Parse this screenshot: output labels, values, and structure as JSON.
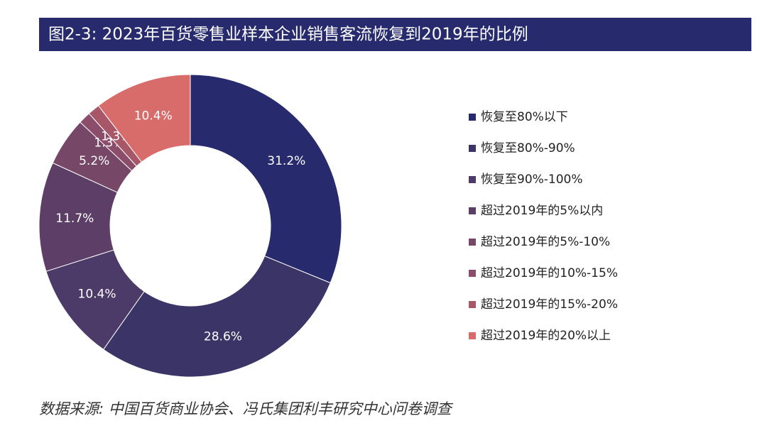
{
  "chart_data": {
    "type": "donut",
    "title": "图2-3: 2023年百货零售业样本企业销售客流恢复到2019年的比例",
    "source": "数据来源: 中国百货商业协会、冯氏集团利丰研究中心问卷调查",
    "categories": [
      "恢复至80%以下",
      "恢复至80%-90%",
      "恢复至90%-100%",
      "超过2019年的5%以内",
      "超过2019年的5%-10%",
      "超过2019年的10%-15%",
      "超过2019年的15%-20%",
      "超过2019年的20%以上"
    ],
    "values": [
      31.2,
      28.6,
      10.4,
      11.7,
      5.2,
      1.3,
      1.3,
      10.4
    ],
    "value_labels": [
      "31.2%",
      "28.6%",
      "10.4%",
      "11.7%",
      "5.2%",
      "1.3%",
      "1.3%",
      "10.4%"
    ],
    "colors": [
      "#272b6e",
      "#3b3567",
      "#4c3a69",
      "#5d3e66",
      "#774767",
      "#8c4d6b",
      "#a85769",
      "#d86c6a"
    ]
  }
}
